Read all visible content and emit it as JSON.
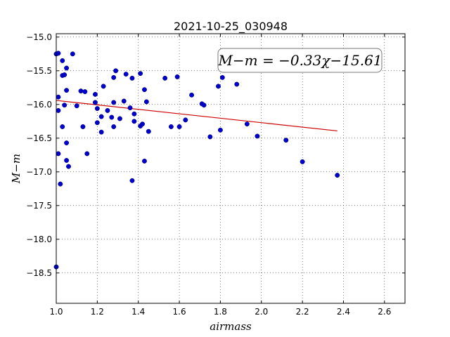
{
  "chart_data": {
    "type": "scatter",
    "title": "2021-10-25_030948",
    "xlabel": "airmass",
    "ylabel": "M−m",
    "xlim": [
      1.0,
      2.7
    ],
    "ylim": [
      -18.95,
      -14.95
    ],
    "y_inverted": true,
    "grid": true,
    "x_ticks": [
      1.0,
      1.2,
      1.4,
      1.6,
      1.8,
      2.0,
      2.2,
      2.4,
      2.6
    ],
    "x_tick_labels": [
      "1.0",
      "1.2",
      "1.4",
      "1.6",
      "1.8",
      "2.0",
      "2.2",
      "2.4",
      "2.6"
    ],
    "y_ticks": [
      -15.0,
      -15.5,
      -16.0,
      -16.5,
      -17.0,
      -17.5,
      -18.0,
      -18.5
    ],
    "y_tick_labels": [
      "−15.0",
      "−15.5",
      "−16.0",
      "−16.5",
      "−17.0",
      "−17.5",
      "−18.0",
      "−18.5"
    ],
    "annotation": "M−m = −0.33χ−15.61",
    "fit_line": {
      "slope": -0.33,
      "intercept": -15.61,
      "x_range": [
        1.0,
        2.37
      ],
      "color": "#cc0000"
    },
    "marker_color": "#0000cc",
    "series": [
      {
        "points": [
          [
            1.0,
            -15.25
          ],
          [
            1.01,
            -15.24
          ],
          [
            1.0,
            -18.41
          ],
          [
            1.01,
            -16.73
          ],
          [
            1.01,
            -15.89
          ],
          [
            1.01,
            -16.09
          ],
          [
            1.02,
            -17.18
          ],
          [
            1.03,
            -15.57
          ],
          [
            1.03,
            -15.35
          ],
          [
            1.03,
            -16.33
          ],
          [
            1.04,
            -15.56
          ],
          [
            1.04,
            -16.01
          ],
          [
            1.05,
            -15.46
          ],
          [
            1.05,
            -16.83
          ],
          [
            1.05,
            -16.57
          ],
          [
            1.05,
            -15.79
          ],
          [
            1.06,
            -16.92
          ],
          [
            1.08,
            -15.25
          ],
          [
            1.1,
            -16.02
          ],
          [
            1.12,
            -15.8
          ],
          [
            1.13,
            -16.33
          ],
          [
            1.14,
            -15.81
          ],
          [
            1.15,
            -16.73
          ],
          [
            1.19,
            -15.85
          ],
          [
            1.19,
            -15.97
          ],
          [
            1.2,
            -16.27
          ],
          [
            1.2,
            -16.06
          ],
          [
            1.22,
            -16.41
          ],
          [
            1.22,
            -16.18
          ],
          [
            1.23,
            -15.73
          ],
          [
            1.25,
            -16.09
          ],
          [
            1.27,
            -16.19
          ],
          [
            1.28,
            -16.33
          ],
          [
            1.28,
            -15.6
          ],
          [
            1.28,
            -15.97
          ],
          [
            1.29,
            -15.5
          ],
          [
            1.31,
            -16.21
          ],
          [
            1.33,
            -15.95
          ],
          [
            1.34,
            -15.55
          ],
          [
            1.36,
            -16.05
          ],
          [
            1.37,
            -17.13
          ],
          [
            1.37,
            -15.61
          ],
          [
            1.38,
            -16.14
          ],
          [
            1.38,
            -16.25
          ],
          [
            1.41,
            -15.54
          ],
          [
            1.41,
            -16.32
          ],
          [
            1.42,
            -16.29
          ],
          [
            1.43,
            -15.78
          ],
          [
            1.43,
            -16.84
          ],
          [
            1.44,
            -15.96
          ],
          [
            1.45,
            -16.4
          ],
          [
            1.53,
            -15.61
          ],
          [
            1.56,
            -16.33
          ],
          [
            1.59,
            -15.59
          ],
          [
            1.6,
            -16.33
          ],
          [
            1.63,
            -16.23
          ],
          [
            1.66,
            -15.86
          ],
          [
            1.71,
            -15.99
          ],
          [
            1.72,
            -16.01
          ],
          [
            1.75,
            -16.48
          ],
          [
            1.79,
            -15.73
          ],
          [
            1.8,
            -16.38
          ],
          [
            1.81,
            -15.6
          ],
          [
            1.88,
            -15.7
          ],
          [
            1.93,
            -16.29
          ],
          [
            1.98,
            -16.47
          ],
          [
            2.12,
            -16.53
          ],
          [
            2.2,
            -16.85
          ],
          [
            2.37,
            -17.05
          ]
        ]
      }
    ]
  }
}
